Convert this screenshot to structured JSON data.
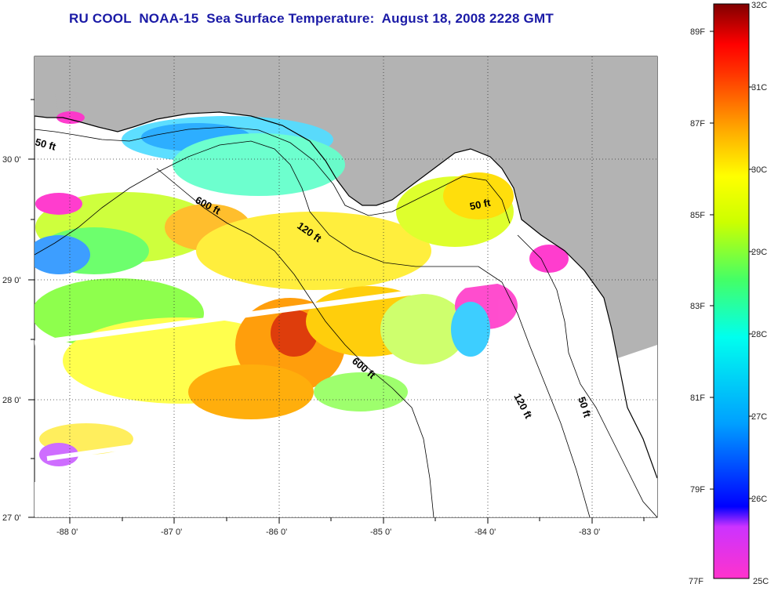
{
  "title": "RU COOL  NOAA-15  Sea Surface Temperature:  August 18, 2008 2228 GMT",
  "map": {
    "lon_range": [
      -88.35,
      -82.6
    ],
    "lat_range": [
      26.97,
      30.85
    ],
    "lon_ticks": [
      "-88 0'",
      "-87 0'",
      "-86 0'",
      "-85 0'",
      "-84 0'",
      "-83 0'"
    ],
    "lat_ticks": [
      "30 0'",
      "29 0'",
      "28 0'",
      "27 0'"
    ],
    "grid": "dotted",
    "land_color": "#b3b3b3",
    "missing_data_color": "#ffffff",
    "contours": [
      {
        "label": "50 ft",
        "depth_ft": 50
      },
      {
        "label": "120 ft",
        "depth_ft": 120
      },
      {
        "label": "600 ft",
        "depth_ft": 600
      },
      {
        "label": "50 ft",
        "depth_ft": 50
      },
      {
        "label": "600 ft",
        "depth_ft": 600
      },
      {
        "label": "120 ft",
        "depth_ft": 120
      },
      {
        "label": "50 ft",
        "depth_ft": 50
      }
    ]
  },
  "colorbar": {
    "min_c": 25,
    "max_c": 32,
    "celsius_labels": [
      "32C",
      "31C",
      "30C",
      "29C",
      "28C",
      "27C",
      "26C",
      "25C"
    ],
    "fahrenheit_labels": [
      "89F",
      "87F",
      "85F",
      "83F",
      "81F",
      "79F",
      "77F"
    ],
    "stops": [
      "#ff33cc",
      "#8a2be2",
      "#0000ff",
      "#00ffff",
      "#33ff66",
      "#ffff00",
      "#ffa500",
      "#ff3300",
      "#ff0000",
      "#800000"
    ]
  }
}
